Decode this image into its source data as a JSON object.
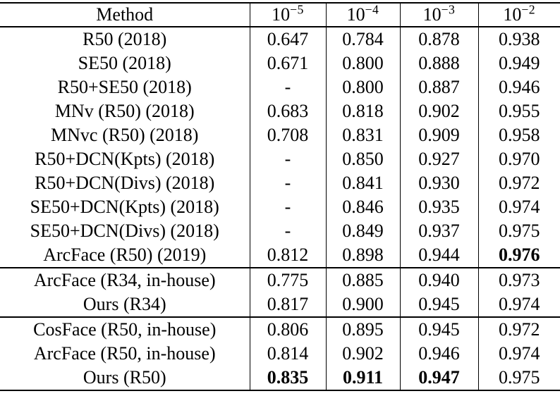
{
  "page": {
    "background_color": "#ffffff",
    "text_color": "#000000",
    "description_kind": "benchmark results table"
  },
  "table": {
    "method_header": "Method",
    "value_headers": [
      {
        "base": "10",
        "exp": "−5"
      },
      {
        "base": "10",
        "exp": "−4"
      },
      {
        "base": "10",
        "exp": "−3"
      },
      {
        "base": "10",
        "exp": "−2"
      }
    ],
    "sections": [
      {
        "rows": [
          {
            "method": "R50 (2018)",
            "values": [
              "0.647",
              "0.784",
              "0.878",
              "0.938"
            ],
            "bold": []
          },
          {
            "method": "SE50 (2018)",
            "values": [
              "0.671",
              "0.800",
              "0.888",
              "0.949"
            ],
            "bold": []
          },
          {
            "method": "R50+SE50 (2018)",
            "values": [
              "-",
              "0.800",
              "0.887",
              "0.946"
            ],
            "bold": []
          },
          {
            "method": "MNv (R50) (2018)",
            "values": [
              "0.683",
              "0.818",
              "0.902",
              "0.955"
            ],
            "bold": []
          },
          {
            "method": "MNvc (R50) (2018)",
            "values": [
              "0.708",
              "0.831",
              "0.909",
              "0.958"
            ],
            "bold": []
          },
          {
            "method": "R50+DCN(Kpts) (2018)",
            "values": [
              "-",
              "0.850",
              "0.927",
              "0.970"
            ],
            "bold": []
          },
          {
            "method": "R50+DCN(Divs) (2018)",
            "values": [
              "-",
              "0.841",
              "0.930",
              "0.972"
            ],
            "bold": []
          },
          {
            "method": "SE50+DCN(Kpts) (2018)",
            "values": [
              "-",
              "0.846",
              "0.935",
              "0.974"
            ],
            "bold": []
          },
          {
            "method": "SE50+DCN(Divs) (2018)",
            "values": [
              "-",
              "0.849",
              "0.937",
              "0.975"
            ],
            "bold": []
          },
          {
            "method": "ArcFace (R50) (2019)",
            "values": [
              "0.812",
              "0.898",
              "0.944",
              "0.976"
            ],
            "bold": [
              3
            ]
          }
        ]
      },
      {
        "rows": [
          {
            "method": "ArcFace (R34, in-house)",
            "values": [
              "0.775",
              "0.885",
              "0.940",
              "0.973"
            ],
            "bold": []
          },
          {
            "method": "Ours (R34)",
            "values": [
              "0.817",
              "0.900",
              "0.945",
              "0.974"
            ],
            "bold": []
          }
        ]
      },
      {
        "rows": [
          {
            "method": "CosFace (R50, in-house)",
            "values": [
              "0.806",
              "0.895",
              "0.945",
              "0.972"
            ],
            "bold": []
          },
          {
            "method": "ArcFace (R50, in-house)",
            "values": [
              "0.814",
              "0.902",
              "0.946",
              "0.974"
            ],
            "bold": []
          },
          {
            "method": "Ours (R50)",
            "values": [
              "0.835",
              "0.911",
              "0.947",
              "0.975"
            ],
            "bold": [
              0,
              1,
              2
            ]
          }
        ]
      }
    ]
  }
}
